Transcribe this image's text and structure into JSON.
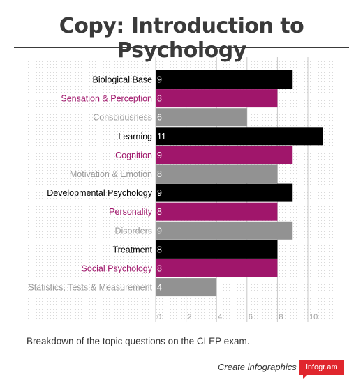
{
  "header": {
    "title": "Copy: Introduction to Psychology"
  },
  "chart_data": {
    "type": "bar",
    "orientation": "horizontal",
    "categories": [
      "Biological Base",
      "Sensation & Perception",
      "Consciousness",
      "Learning",
      "Cognition",
      "Motivation & Emotion",
      "Developmental Psychology",
      "Personality",
      "Disorders",
      "Treatment",
      "Social Psychology",
      "Statistics, Tests & Measurement"
    ],
    "values": [
      9,
      8,
      6,
      11,
      9,
      8,
      9,
      8,
      9,
      8,
      8,
      4
    ],
    "bar_colors": [
      "#000000",
      "#a0166b",
      "#929292",
      "#000000",
      "#a0166b",
      "#929292",
      "#000000",
      "#a0166b",
      "#929292",
      "#000000",
      "#a0166b",
      "#929292"
    ],
    "label_colors": [
      "#000000",
      "#a0166b",
      "#9a9a9a",
      "#000000",
      "#a0166b",
      "#9a9a9a",
      "#000000",
      "#a0166b",
      "#9a9a9a",
      "#000000",
      "#a0166b",
      "#9a9a9a"
    ],
    "x_ticks": [
      "0",
      "2",
      "4",
      "6",
      "8",
      "10"
    ],
    "xlim": [
      0,
      12
    ],
    "grid": true
  },
  "caption": "Breakdown of the topic questions on the CLEP exam.",
  "footer": {
    "credit": "Create infographics",
    "badge": "infogr.am"
  },
  "colors": {
    "black": "#000000",
    "magenta": "#a0166b",
    "gray": "#929292",
    "brand_red": "#e0262d"
  }
}
